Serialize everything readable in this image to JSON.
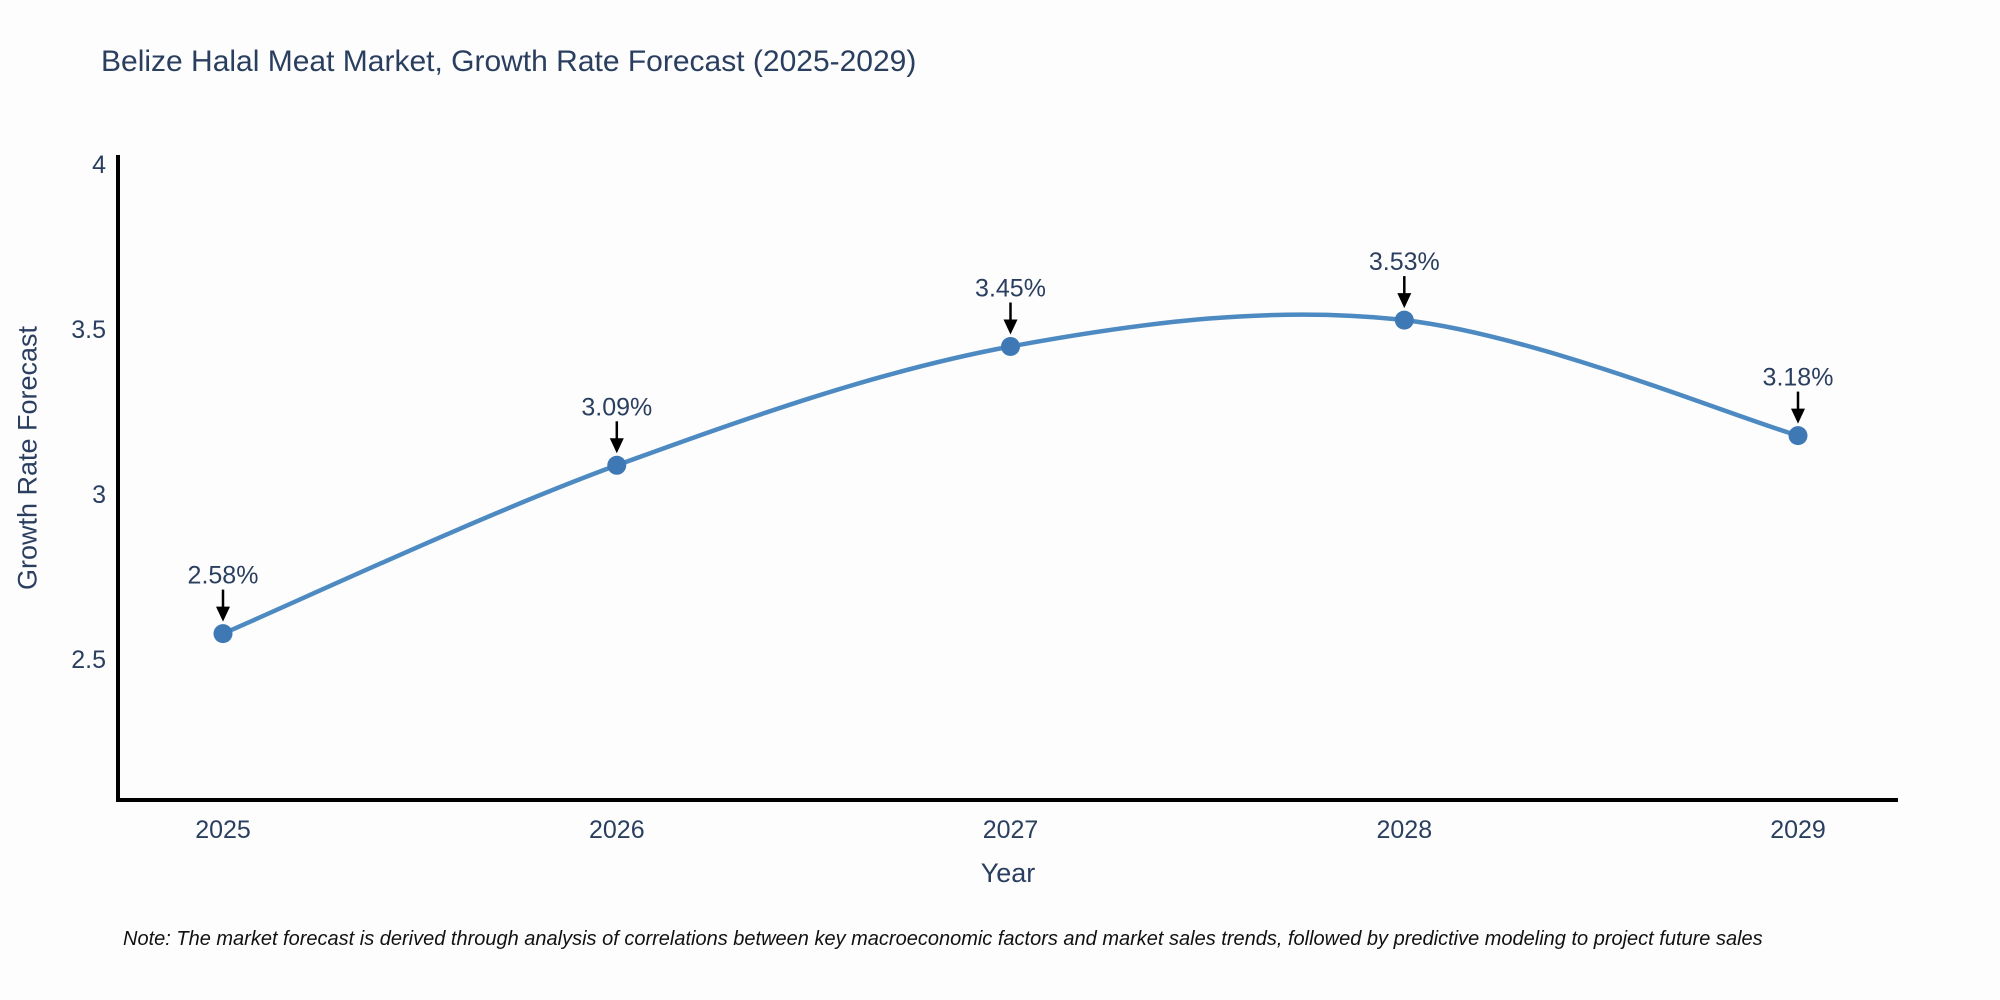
{
  "note": "Note: The market forecast is derived through analysis of correlations between key macroeconomic factors and market sales trends, followed by predictive modeling to project future sales",
  "chart_data": {
    "type": "line",
    "line_shape": "spline",
    "title": "Belize Halal Meat Market, Growth Rate Forecast (2025-2029)",
    "xlabel": "Year",
    "ylabel": "Growth Rate Forecast",
    "x": [
      2025,
      2026,
      2027,
      2028,
      2029
    ],
    "categories": [
      "2025",
      "2026",
      "2027",
      "2028",
      "2029"
    ],
    "values": [
      2.58,
      3.09,
      3.45,
      3.53,
      3.18
    ],
    "point_labels": [
      "2.58%",
      "3.09%",
      "3.45%",
      "3.53%",
      "3.18%"
    ],
    "yticks": [
      2.5,
      3,
      3.5,
      4
    ],
    "ytick_labels": [
      "2.5",
      "3",
      "3.5",
      "4"
    ],
    "ylim": [
      2.08,
      4.02
    ],
    "xlim": [
      2024.73,
      2029.25
    ],
    "grid": false,
    "legend": "none",
    "colors": {
      "line": "#4d8ac2",
      "marker": "#3e79b6",
      "axis": "#000000",
      "text": "#2a3f5f",
      "annotation_arrow": "#000000",
      "background": "#fdfdfd"
    }
  }
}
